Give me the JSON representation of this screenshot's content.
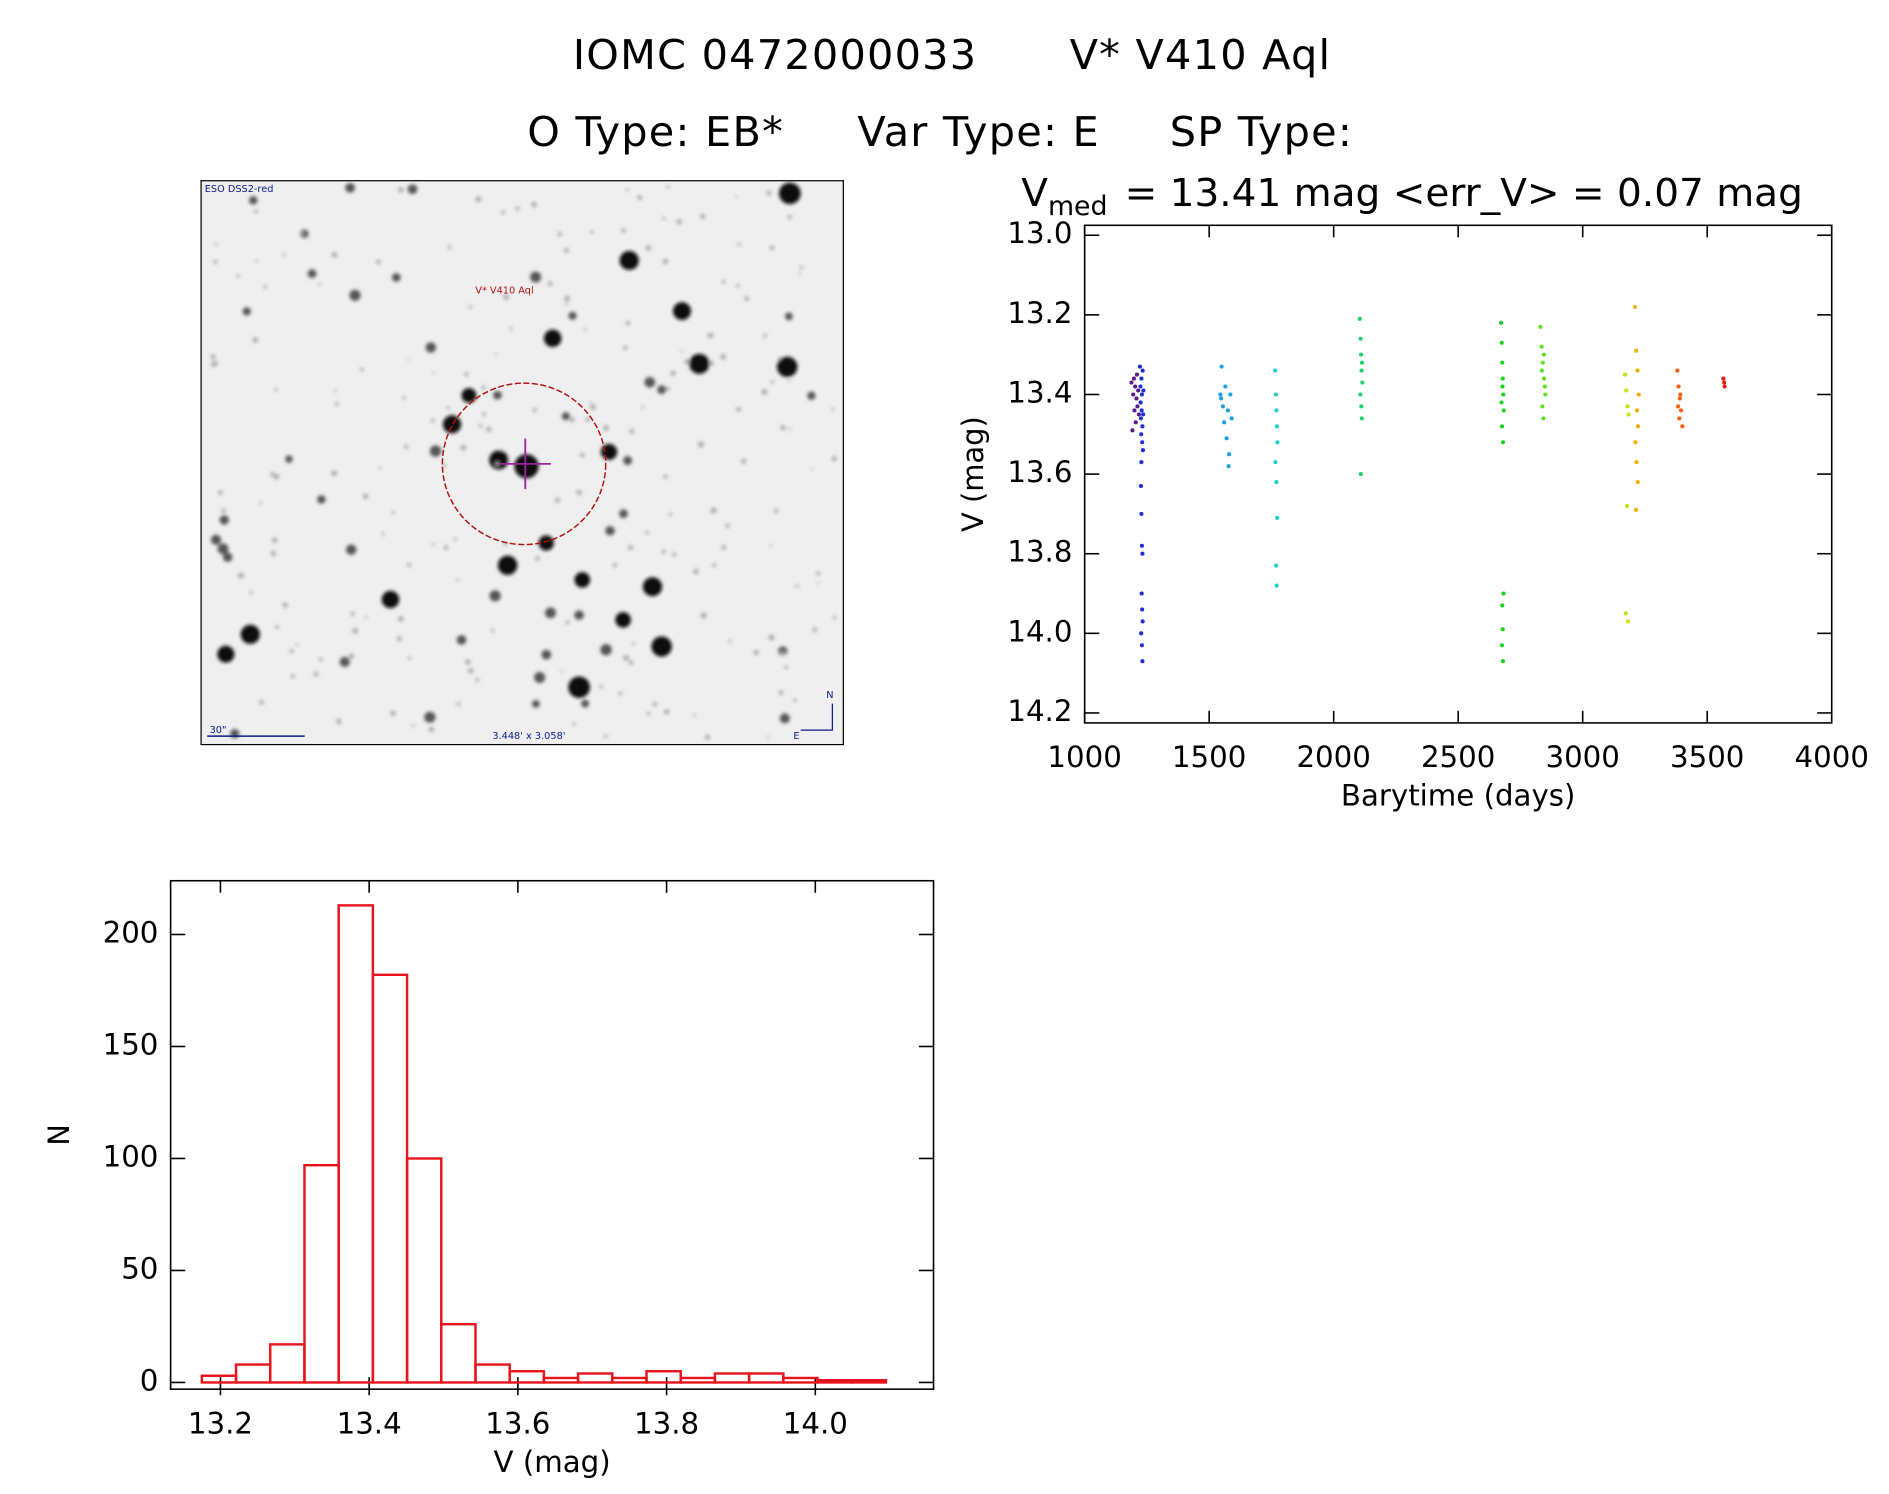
{
  "header": {
    "title_id": "IOMC 0472000033",
    "title_name": "V* V410 Aql",
    "object_type": "O Type: EB*",
    "var_type": "Var Type: E",
    "sp_type": "SP Type:"
  },
  "image_panel": {
    "survey": "ESO DSS2-red",
    "label": "V* V410 Aql",
    "scale": "30\"",
    "field": "3.448' x 3.058'",
    "north": "N",
    "east": "E"
  },
  "chart_data": [
    {
      "type": "scatter",
      "title": {
        "symbol": "V",
        "subscript": "med",
        "text": "= 13.41 mag <err_V> = 0.07 mag"
      },
      "xlabel": "Barytime (days)",
      "ylabel": "V (mag)",
      "xlim": [
        1000,
        4000
      ],
      "ylim": [
        14.225,
        12.975
      ],
      "xticks": [
        1000,
        1500,
        2000,
        2500,
        3000,
        3500,
        4000
      ],
      "yticks": [
        {
          "value": 13.0,
          "label": "13.0"
        },
        13.2,
        13.4,
        13.6,
        13.8,
        {
          "value": 14.0,
          "label": "14.0"
        },
        14.2
      ],
      "series": [
        {
          "color": "#5a1a8a",
          "x": [
            1188,
            1192,
            1195,
            1198,
            1200,
            1203,
            1205,
            1208,
            1210,
            1212,
            1215,
            1218
          ],
          "values": [
            13.37,
            13.49,
            13.4,
            13.36,
            13.44,
            13.38,
            13.47,
            13.41,
            13.35,
            13.43,
            13.39,
            13.45
          ]
        },
        {
          "color": "#2030d0",
          "x": [
            1222,
            1224,
            1225,
            1226,
            1227,
            1228,
            1229,
            1230,
            1231,
            1232,
            1233,
            1234,
            1235,
            1236,
            1226,
            1228,
            1230,
            1232,
            1229,
            1231,
            1233,
            1227,
            1230,
            1232,
            1228
          ],
          "values": [
            13.33,
            13.38,
            13.42,
            13.46,
            13.5,
            13.36,
            13.44,
            13.4,
            13.52,
            13.48,
            13.34,
            13.54,
            13.45,
            13.39,
            13.63,
            13.7,
            13.78,
            13.8,
            13.9,
            13.94,
            13.97,
            14.0,
            14.03,
            14.07,
            13.57
          ]
        },
        {
          "color": "#1aa0e0",
          "x": [
            1545,
            1550,
            1555,
            1560,
            1565,
            1570,
            1575,
            1580,
            1585,
            1590,
            1548,
            1578
          ],
          "values": [
            13.4,
            13.33,
            13.43,
            13.47,
            13.38,
            13.51,
            13.44,
            13.55,
            13.4,
            13.46,
            13.41,
            13.58
          ]
        },
        {
          "color": "#20d0c8",
          "x": [
            1765,
            1768,
            1770,
            1772,
            1774,
            1766,
            1770,
            1773,
            1769,
            1771
          ],
          "values": [
            13.34,
            13.4,
            13.44,
            13.48,
            13.52,
            13.57,
            13.62,
            13.71,
            13.83,
            13.88
          ]
        },
        {
          "color": "#20d070",
          "x": [
            2105,
            2108,
            2110,
            2112,
            2115,
            2107,
            2111,
            2113,
            2109,
            2114
          ],
          "values": [
            13.21,
            13.26,
            13.3,
            13.34,
            13.37,
            13.4,
            13.43,
            13.46,
            13.6,
            13.32
          ]
        },
        {
          "color": "#20d020",
          "x": [
            2672,
            2675,
            2677,
            2679,
            2681,
            2683,
            2676,
            2680,
            2678,
            2674,
            2682,
            2677,
            2679,
            2676,
            2680
          ],
          "values": [
            13.22,
            13.27,
            13.32,
            13.36,
            13.4,
            13.44,
            13.48,
            13.52,
            13.38,
            13.42,
            13.9,
            13.93,
            13.99,
            14.03,
            14.07
          ]
        },
        {
          "color": "#60e020",
          "x": [
            2830,
            2835,
            2840,
            2845,
            2850,
            2838,
            2842,
            2848,
            2836,
            2844
          ],
          "values": [
            13.23,
            13.28,
            13.32,
            13.36,
            13.4,
            13.43,
            13.46,
            13.38,
            13.34,
            13.3
          ]
        },
        {
          "color": "#c8e010",
          "x": [
            3170,
            3175,
            3180,
            3185,
            3178,
            3173,
            3182
          ],
          "values": [
            13.35,
            13.39,
            13.43,
            13.45,
            13.68,
            13.95,
            13.97
          ]
        },
        {
          "color": "#f0b000",
          "x": [
            3210,
            3215,
            3220,
            3225,
            3218,
            3222,
            3212,
            3216,
            3221,
            3214
          ],
          "values": [
            13.18,
            13.29,
            13.34,
            13.4,
            13.44,
            13.48,
            13.52,
            13.57,
            13.62,
            13.69
          ]
        },
        {
          "color": "#f06010",
          "x": [
            3380,
            3385,
            3390,
            3395,
            3400,
            3388,
            3392,
            3383
          ],
          "values": [
            13.34,
            13.38,
            13.41,
            13.44,
            13.48,
            13.46,
            13.4,
            13.43
          ]
        },
        {
          "color": "#e02010",
          "x": [
            3565,
            3570,
            3568
          ],
          "values": [
            13.36,
            13.38,
            13.37
          ]
        }
      ]
    },
    {
      "type": "histogram",
      "xlabel": "V (mag)",
      "ylabel": "N",
      "color": "#e8141c",
      "bins": [
        13.175,
        13.221,
        13.267,
        13.313,
        13.359,
        13.405,
        13.451,
        13.497,
        13.543,
        13.589,
        13.635,
        13.681,
        13.727,
        13.773,
        13.819,
        13.865,
        13.911,
        13.957,
        14.003,
        14.049,
        14.095
      ],
      "values": [
        3,
        8,
        17,
        97,
        213,
        182,
        100,
        26,
        8,
        5,
        2,
        4,
        2,
        5,
        2,
        4,
        4,
        2,
        1,
        1
      ],
      "xlim": [
        13.133,
        14.159
      ],
      "ylim": [
        -3,
        224
      ],
      "xticks": [
        13.2,
        13.4,
        13.6,
        13.8,
        {
          "value": 14.0,
          "label": "14.0"
        }
      ],
      "yticks": [
        0,
        50,
        100,
        150,
        200
      ]
    }
  ]
}
